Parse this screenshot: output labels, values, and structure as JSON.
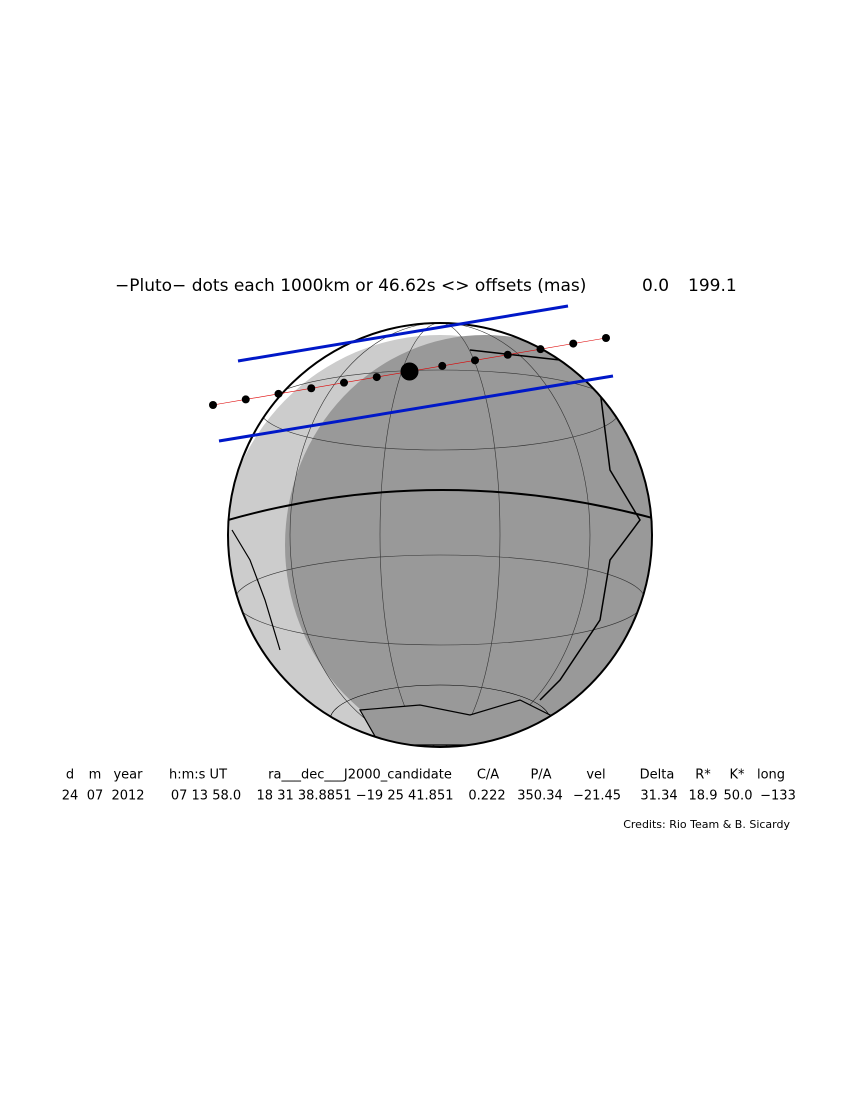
{
  "header": {
    "title": "−Pluto− dots each 1000km or 46.62s <> offsets (mas)",
    "offset_x": "0.0",
    "offset_y": "199.1"
  },
  "table": {
    "columns": [
      "d",
      "m",
      "year",
      "h:m:s UT",
      "ra___dec___J2000_candidate",
      "C/A",
      "P/A",
      "vel",
      "Delta",
      "R*",
      "K*",
      "long"
    ],
    "values": [
      "24",
      "07",
      "2012",
      "07 13 58.0",
      "18 31 38.8851 −19 25 41.851",
      "0.222",
      "350.34",
      "−21.45",
      "31.34",
      "18.9",
      "50.0",
      "−133"
    ]
  },
  "credits": "Credits: Rio Team & B. Sicardy"
}
